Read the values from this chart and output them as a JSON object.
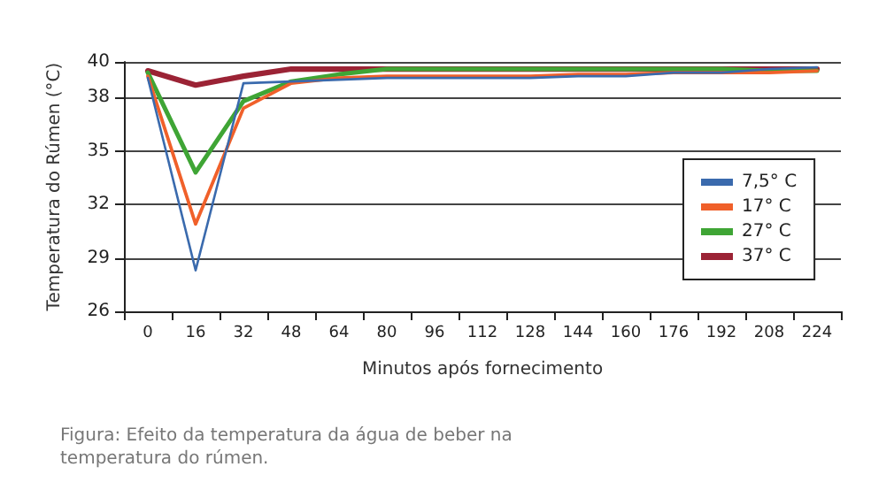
{
  "chart_data": {
    "type": "line",
    "xlabel": "Minutos após fornecimento",
    "ylabel": "Temperatura do Rúmen (°C)",
    "categories": [
      "0",
      "16",
      "32",
      "48",
      "64",
      "80",
      "96",
      "112",
      "128",
      "144",
      "160",
      "176",
      "192",
      "208",
      "224"
    ],
    "series": [
      {
        "name": "7,5° C",
        "color": "#3a6aad",
        "values": [
          39.1,
          28.3,
          38.8,
          38.9,
          39.0,
          39.1,
          39.1,
          39.1,
          39.1,
          39.2,
          39.2,
          39.4,
          39.4,
          39.6,
          39.7
        ]
      },
      {
        "name": "17° C",
        "color": "#f0602a",
        "values": [
          39.2,
          30.9,
          37.4,
          38.8,
          39.1,
          39.2,
          39.2,
          39.2,
          39.2,
          39.3,
          39.3,
          39.4,
          39.4,
          39.4,
          39.5
        ]
      },
      {
        "name": "27° C",
        "color": "#3fa535",
        "values": [
          39.4,
          33.8,
          37.8,
          38.9,
          39.3,
          39.6,
          39.6,
          39.6,
          39.6,
          39.6,
          39.6,
          39.6,
          39.6,
          39.5,
          39.5
        ]
      },
      {
        "name": "37° C",
        "color": "#9b2335",
        "values": [
          39.5,
          38.7,
          39.2,
          39.6,
          39.6,
          39.6,
          39.6,
          39.6,
          39.6,
          39.6,
          39.6,
          39.6,
          39.6,
          39.6,
          39.6
        ]
      }
    ],
    "ylim": [
      26,
      40
    ],
    "yticks": [
      26,
      29,
      32,
      35,
      38,
      40
    ],
    "grid": "y",
    "legend": "right",
    "marker": "none",
    "line_style": "solid",
    "annotations": [
      "Figura: Efeito da temperatura da água de beber na temperatura do rúmen."
    ]
  }
}
